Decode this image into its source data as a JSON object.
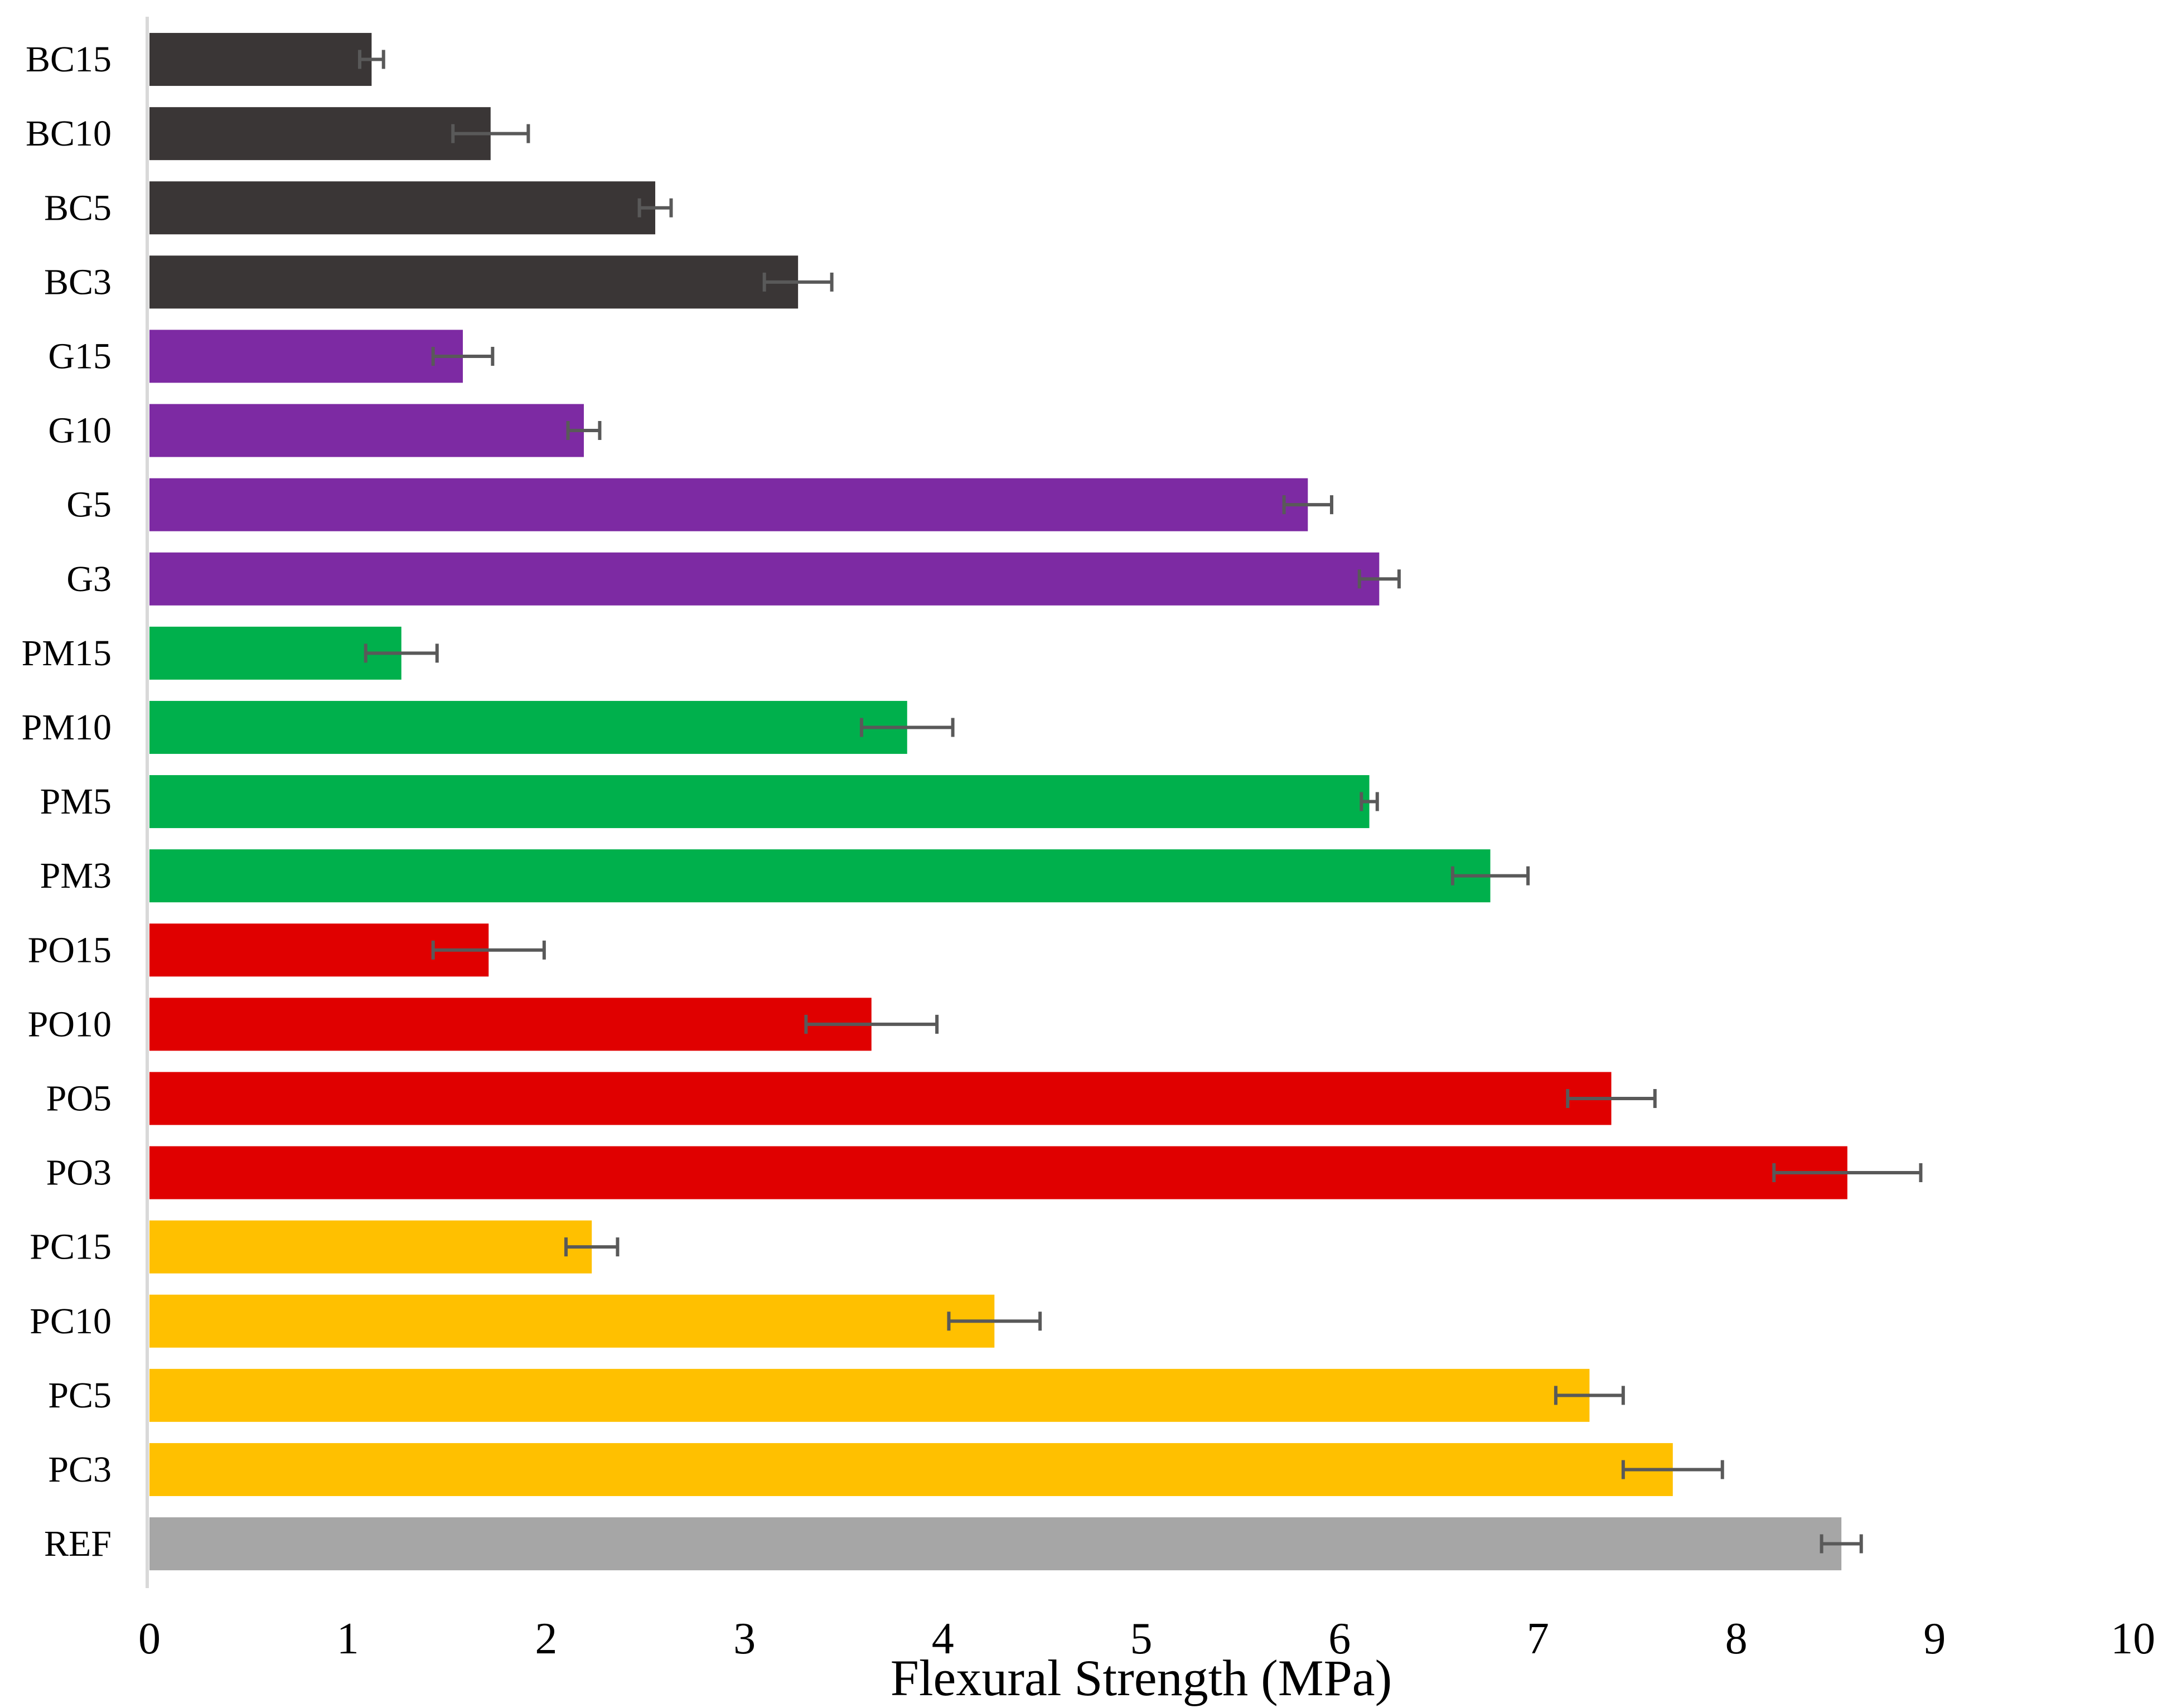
{
  "chart_data": {
    "type": "bar",
    "orientation": "horizontal",
    "title": "",
    "xlabel": "Flexural Strength (MPa)",
    "ylabel": "",
    "xlim": [
      0,
      10
    ],
    "x_ticks": [
      0,
      1,
      2,
      3,
      4,
      5,
      6,
      7,
      8,
      9,
      10
    ],
    "grid": false,
    "legend": "none",
    "categories": [
      "BC15",
      "BC10",
      "BC5",
      "BC3",
      "G15",
      "G10",
      "G5",
      "G3",
      "PM15",
      "PM10",
      "PM5",
      "PM3",
      "PO15",
      "PO10",
      "PO5",
      "PO3",
      "PC15",
      "PC10",
      "PC5",
      "PC3",
      "REF"
    ],
    "values": [
      1.12,
      1.72,
      2.55,
      3.27,
      1.58,
      2.19,
      5.84,
      6.2,
      1.27,
      3.82,
      6.15,
      6.76,
      1.71,
      3.64,
      7.37,
      8.56,
      2.23,
      4.26,
      7.26,
      7.68,
      8.53
    ],
    "errors": [
      0.06,
      0.19,
      0.08,
      0.17,
      0.15,
      0.08,
      0.12,
      0.1,
      0.18,
      0.23,
      0.04,
      0.19,
      0.28,
      0.33,
      0.22,
      0.37,
      0.13,
      0.23,
      0.17,
      0.25,
      0.1
    ],
    "colors": [
      "#3a3636",
      "#3a3636",
      "#3a3636",
      "#3a3636",
      "#7d2aa3",
      "#7d2aa3",
      "#7d2aa3",
      "#7d2aa3",
      "#00b04c",
      "#00b04c",
      "#00b04c",
      "#00b04c",
      "#e00000",
      "#e00000",
      "#e00000",
      "#e00000",
      "#ffc000",
      "#ffc000",
      "#ffc000",
      "#ffc000",
      "#a6a6a6"
    ],
    "error_bar_color": "#595959",
    "axis_color": "#d9d9d9"
  }
}
